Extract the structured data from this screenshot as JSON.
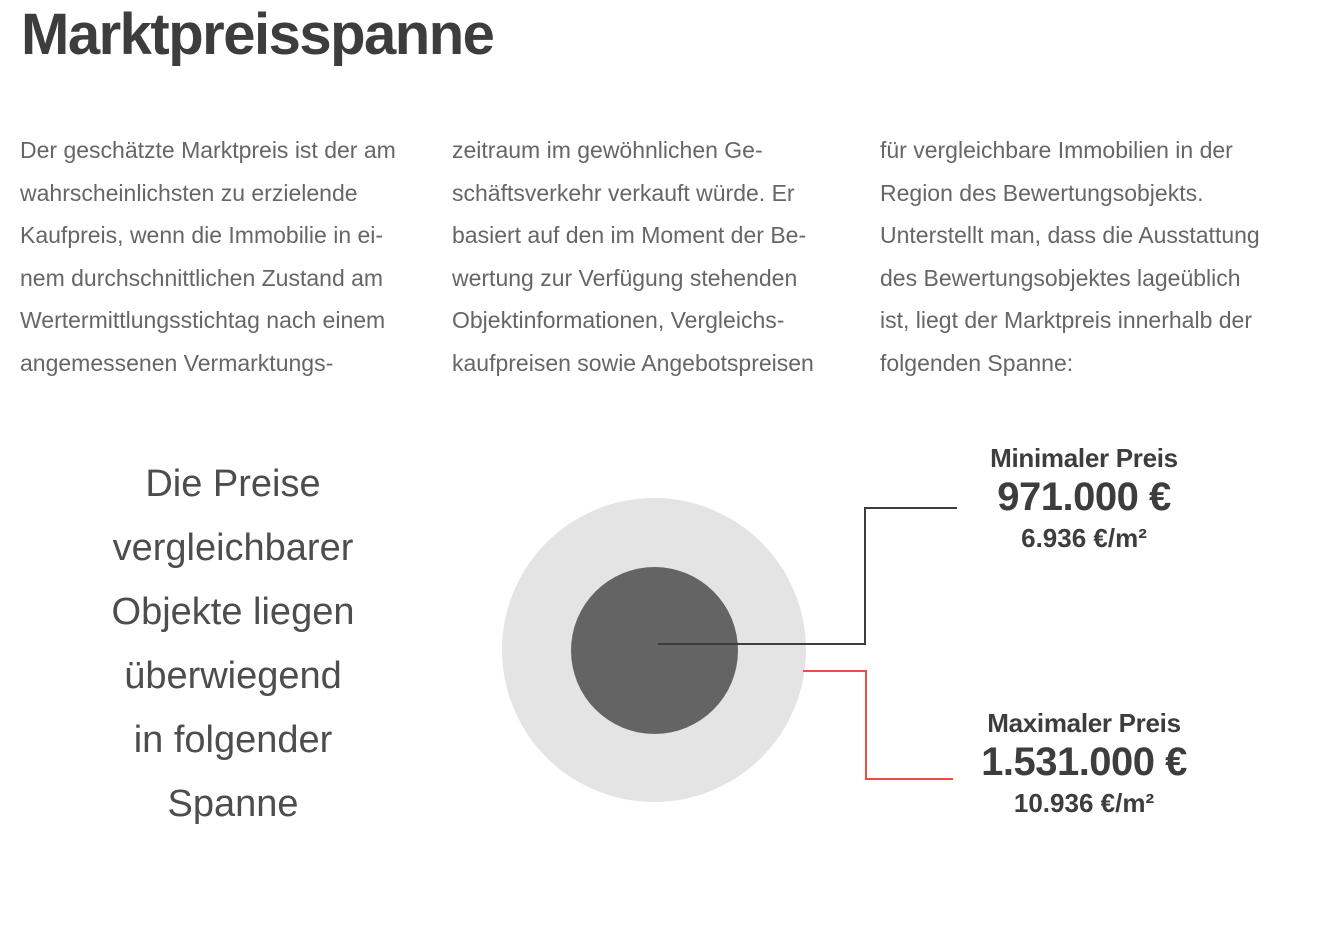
{
  "colors": {
    "background": "#ffffff",
    "title-text": "#3d3d3d",
    "body-text": "#666666",
    "note-text": "#4d4d4d",
    "price-text": "#3d3d3d",
    "outer-circle": "#e4e4e4",
    "inner-circle": "#646464",
    "min-connector": "#3d3d3d",
    "max-connector": "#ee4c42"
  },
  "header": {
    "title": "Marktpreisspanne"
  },
  "intro": {
    "columns": [
      {
        "lines": [
          "Der geschätzte Marktpreis ist der am",
          "wahrscheinlichsten zu erzielende",
          "Kaufpreis, wenn die Immobilie in ei-",
          "nem durchschnittlichen Zustand am",
          "Wertermittlungsstichtag nach einem",
          "angemessenen Vermarktungs-"
        ]
      },
      {
        "lines": [
          "zeitraum im gewöhnlichen Ge-",
          "schäftsverkehr verkauft würde. Er",
          "basiert auf den im Moment der Be-",
          "wertung zur Verfügung stehenden",
          "Objektinformationen, Vergleichs-",
          "kaufpreisen sowie Angebotspreisen"
        ]
      },
      {
        "lines": [
          "für vergleichbare Immobilien in der",
          "Region des Bewertungsobjekts.",
          "Unterstellt man, dass die Ausstattung",
          "des Bewertungsobjektes lageüblich",
          "ist, liegt der Marktpreis innerhalb der",
          "folgenden Spanne:"
        ]
      }
    ]
  },
  "range_note": {
    "lines": [
      "Die Preise",
      "vergleichbarer",
      "Objekte liegen",
      "überwiegend",
      "in folgender",
      "Spanne"
    ]
  },
  "price_range": {
    "min": {
      "label": "Minimaler Preis",
      "value": "971.000 €",
      "per_sqm": "6.936 €/m²"
    },
    "max": {
      "label": "Maximaler Preis",
      "value": "1.531.000 €",
      "per_sqm": "10.936 €/m²"
    }
  }
}
